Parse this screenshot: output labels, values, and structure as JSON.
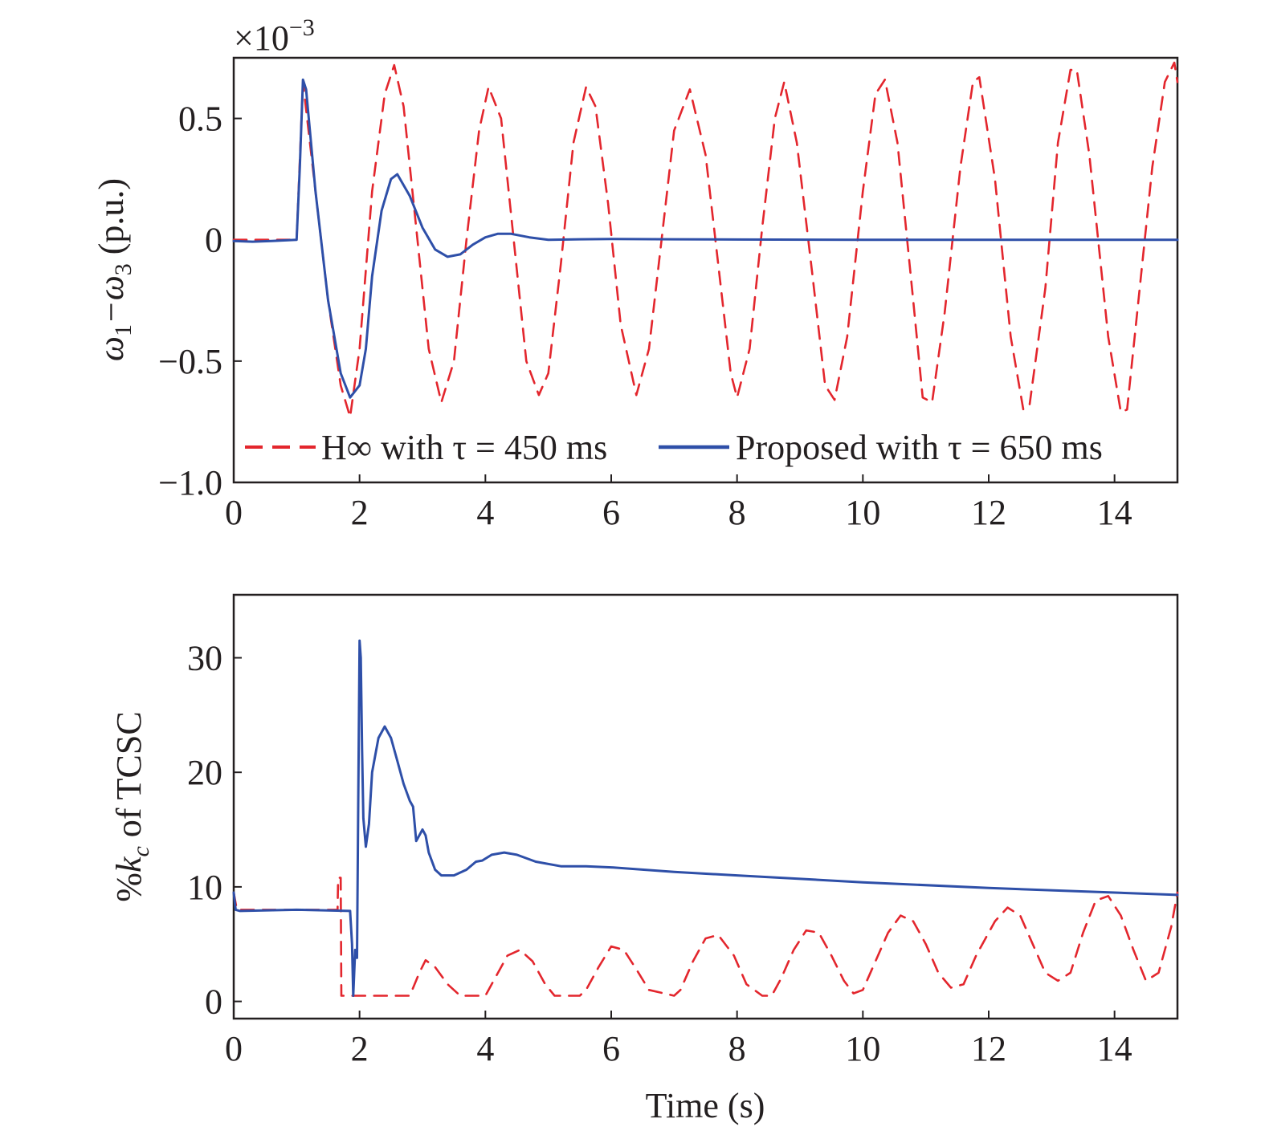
{
  "colors": {
    "hinf": "#e3262d",
    "proposed": "#2e4fa8",
    "axis": "#231f20"
  },
  "chart_data": [
    {
      "type": "line",
      "exponent_label": "×10",
      "exponent_power": "−3",
      "ylabel_parts": [
        "ω",
        "1",
        "−ω",
        "3",
        " (p.u.)"
      ],
      "xlim": [
        0,
        15
      ],
      "ylim": [
        -1.0,
        0.75
      ],
      "xticks": [
        0,
        2,
        4,
        6,
        8,
        10,
        12,
        14
      ],
      "xtick_labels": [
        "0",
        "2",
        "4",
        "6",
        "8",
        "10",
        "12",
        "14"
      ],
      "yticks": [
        0.5,
        0,
        -0.5,
        -1.0
      ],
      "ytick_labels": [
        "0.5",
        "0",
        "−0.5",
        "−1.0"
      ],
      "legend_position": "lower-center",
      "series": [
        {
          "name": "H∞ with τ = 450 ms",
          "style": "dashed",
          "x": [
            0,
            1.0,
            1.1,
            1.3,
            1.5,
            1.7,
            1.85,
            2.0,
            2.2,
            2.4,
            2.55,
            2.7,
            2.9,
            3.1,
            3.3,
            3.5,
            3.7,
            3.9,
            4.05,
            4.25,
            4.45,
            4.65,
            4.85,
            5.0,
            5.2,
            5.4,
            5.6,
            5.75,
            5.95,
            6.15,
            6.4,
            6.6,
            6.8,
            7.0,
            7.25,
            7.5,
            7.7,
            7.9,
            8.0,
            8.2,
            8.4,
            8.6,
            8.75,
            8.95,
            9.2,
            9.4,
            9.55,
            9.75,
            10.0,
            10.2,
            10.35,
            10.55,
            10.8,
            10.95,
            11.1,
            11.3,
            11.55,
            11.75,
            11.85,
            12.1,
            12.35,
            12.55,
            12.65,
            12.9,
            13.1,
            13.3,
            13.4,
            13.6,
            13.9,
            14.1,
            14.2,
            14.4,
            14.6,
            14.8,
            14.95,
            15.0
          ],
          "y": [
            0,
            0,
            0.65,
            0.2,
            -0.25,
            -0.6,
            -0.73,
            -0.45,
            0.2,
            0.6,
            0.72,
            0.55,
            0.05,
            -0.45,
            -0.67,
            -0.5,
            0.0,
            0.45,
            0.63,
            0.5,
            0.0,
            -0.5,
            -0.64,
            -0.55,
            -0.1,
            0.4,
            0.63,
            0.55,
            0.15,
            -0.35,
            -0.64,
            -0.45,
            0.0,
            0.45,
            0.62,
            0.35,
            -0.1,
            -0.55,
            -0.65,
            -0.45,
            0.05,
            0.5,
            0.65,
            0.4,
            -0.15,
            -0.6,
            -0.66,
            -0.4,
            0.2,
            0.6,
            0.66,
            0.4,
            -0.25,
            -0.65,
            -0.67,
            -0.3,
            0.3,
            0.65,
            0.67,
            0.25,
            -0.4,
            -0.7,
            -0.68,
            -0.2,
            0.4,
            0.7,
            0.7,
            0.35,
            -0.4,
            -0.71,
            -0.7,
            -0.2,
            0.3,
            0.65,
            0.73,
            0.65
          ]
        },
        {
          "name": "Proposed with τ = 650 ms",
          "style": "solid",
          "x": [
            0,
            0.3,
            0.6,
            1.0,
            1.05,
            1.1,
            1.15,
            1.3,
            1.5,
            1.7,
            1.85,
            2.0,
            2.1,
            2.2,
            2.35,
            2.5,
            2.6,
            2.8,
            3.0,
            3.2,
            3.4,
            3.6,
            3.8,
            4.0,
            4.2,
            4.4,
            4.7,
            5.0,
            5.5,
            6.0,
            7.0,
            8.0,
            10.0,
            12.0,
            15.0
          ],
          "y": [
            -0.005,
            -0.008,
            -0.005,
            0,
            0.3,
            0.66,
            0.62,
            0.2,
            -0.25,
            -0.55,
            -0.65,
            -0.6,
            -0.45,
            -0.15,
            0.12,
            0.25,
            0.27,
            0.18,
            0.05,
            -0.04,
            -0.07,
            -0.06,
            -0.02,
            0.01,
            0.025,
            0.025,
            0.01,
            0.0,
            0.002,
            0.003,
            0.002,
            0.001,
            0.0,
            0.0,
            0.0
          ]
        }
      ]
    },
    {
      "type": "line",
      "ylabel_parts": [
        "%",
        "k",
        "c",
        " of TCSC"
      ],
      "xlabel": "Time (s)",
      "xlim": [
        0,
        15
      ],
      "ylim": [
        -1.5,
        35.5
      ],
      "xticks": [
        0,
        2,
        4,
        6,
        8,
        10,
        12,
        14
      ],
      "xtick_labels": [
        "0",
        "2",
        "4",
        "6",
        "8",
        "10",
        "12",
        "14"
      ],
      "yticks": [
        0,
        10,
        20,
        30
      ],
      "ytick_labels": [
        "0",
        "10",
        "20",
        "30"
      ],
      "series": [
        {
          "name": "H∞ with τ = 450 ms",
          "style": "dashed",
          "x": [
            0,
            0.05,
            1.65,
            1.66,
            1.7,
            1.71,
            2.8,
            2.95,
            3.05,
            3.2,
            3.4,
            3.6,
            4.0,
            4.15,
            4.35,
            4.55,
            4.75,
            4.95,
            5.1,
            5.5,
            5.6,
            5.8,
            6.0,
            6.2,
            6.4,
            6.6,
            7.0,
            7.1,
            7.3,
            7.5,
            7.7,
            7.95,
            8.15,
            8.4,
            8.55,
            8.7,
            8.9,
            9.1,
            9.3,
            9.5,
            9.7,
            9.85,
            10.0,
            10.2,
            10.4,
            10.6,
            10.8,
            11.0,
            11.2,
            11.4,
            11.6,
            11.8,
            12.1,
            12.3,
            12.5,
            12.7,
            12.9,
            13.1,
            13.3,
            13.5,
            13.7,
            13.9,
            14.1,
            14.3,
            14.5,
            14.7,
            14.9,
            15.0
          ],
          "y": [
            9.5,
            8.0,
            8.0,
            10.8,
            10.8,
            0.5,
            0.5,
            2.5,
            3.6,
            3.0,
            1.5,
            0.5,
            0.5,
            2.0,
            4.0,
            4.5,
            3.5,
            1.5,
            0.5,
            0.5,
            1.0,
            3.0,
            4.8,
            4.5,
            2.8,
            1.0,
            0.5,
            1.0,
            3.5,
            5.5,
            5.8,
            4.0,
            1.5,
            0.5,
            0.5,
            2.0,
            4.5,
            6.2,
            6.0,
            4.0,
            1.8,
            0.7,
            1.0,
            3.5,
            6.0,
            7.5,
            7.0,
            5.0,
            2.5,
            1.2,
            1.5,
            4.0,
            7.0,
            8.2,
            7.5,
            5.0,
            2.5,
            1.8,
            2.5,
            6.0,
            8.8,
            9.2,
            7.5,
            4.5,
            1.8,
            2.5,
            6.5,
            9.5
          ]
        },
        {
          "name": "Proposed with τ = 650 ms",
          "style": "solid",
          "x": [
            0,
            0.03,
            0.1,
            1.0,
            1.85,
            1.88,
            1.9,
            1.93,
            1.96,
            1.98,
            2.0,
            2.02,
            2.04,
            2.06,
            2.1,
            2.15,
            2.2,
            2.3,
            2.4,
            2.5,
            2.6,
            2.7,
            2.8,
            2.85,
            2.9,
            2.95,
            3.0,
            3.05,
            3.1,
            3.2,
            3.3,
            3.5,
            3.7,
            3.85,
            3.95,
            4.1,
            4.3,
            4.5,
            4.8,
            5.2,
            5.6,
            6.0,
            7.0,
            8.0,
            10.0,
            12.0,
            14.0,
            15.0
          ],
          "y": [
            9.5,
            8.0,
            7.9,
            8.0,
            7.9,
            5.0,
            0.5,
            4.5,
            3.8,
            18.0,
            31.5,
            30.0,
            22.0,
            16.0,
            13.5,
            15.5,
            20.0,
            23.0,
            24.0,
            23.0,
            21.0,
            19.0,
            17.5,
            17.0,
            14.0,
            14.5,
            15.0,
            14.5,
            13.0,
            11.5,
            11.0,
            11.0,
            11.5,
            12.2,
            12.3,
            12.8,
            13.0,
            12.8,
            12.2,
            11.8,
            11.8,
            11.7,
            11.3,
            11.0,
            10.4,
            9.9,
            9.5,
            9.3
          ]
        }
      ]
    }
  ]
}
